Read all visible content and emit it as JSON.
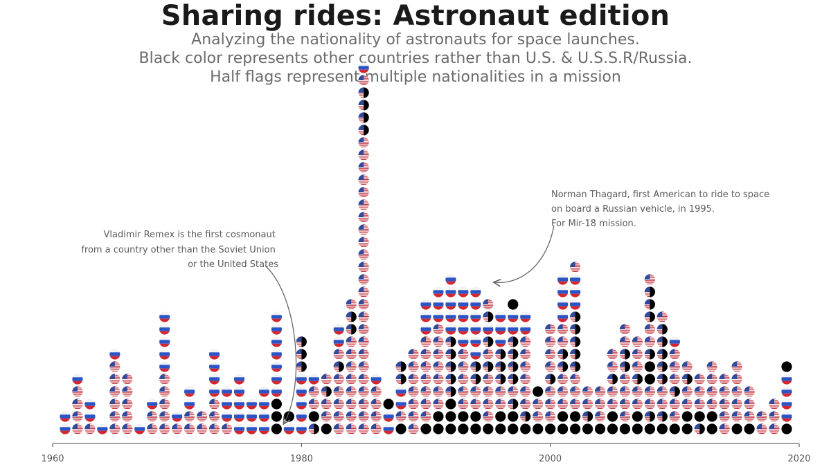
{
  "title": "Sharing rides: Astronaut edition",
  "subtitle_lines": [
    "Analyzing the nationality of astronauts for space launches.",
    "Black color represents other countries rather than U.S. & U.S.S.R/Russia.",
    "Half flags represent multiple nationalities in a mission"
  ],
  "annotations": [
    {
      "lines": [
        "Vladimir Remex is the first cosmonaut",
        "from a country other than the Soviet Union",
        "or the United States"
      ],
      "align": "end"
    },
    {
      "lines": [
        "Norman Thagard, first American to ride to space",
        " on board a Russian vehicle, in 1995.",
        "For Mir-18 mission."
      ],
      "align": "start"
    }
  ],
  "chart_data": {
    "type": "scatter",
    "subtype": "stacked dot plot (one dot per launch/mission, coloured by nationality)",
    "xlim": [
      1960,
      2020
    ],
    "x_ticks": [
      1960,
      1980,
      2000,
      2020
    ],
    "colors": {
      "russia_white": "#f2f2f2",
      "russia_blue": "#2b55c7",
      "russia_red": "#d6262d",
      "usa_red": "#c0313b",
      "usa_white": "#ffffff",
      "usa_blue": "#324a9c",
      "other": "#000000"
    },
    "columns": [
      {
        "year": 1961,
        "stack": [
          "R",
          "R"
        ]
      },
      {
        "year": 1962,
        "stack": [
          "U",
          "U",
          "U",
          "U",
          "R"
        ]
      },
      {
        "year": 1963,
        "stack": [
          "U",
          "R",
          "R"
        ]
      },
      {
        "year": 1964,
        "stack": [
          "R"
        ]
      },
      {
        "year": 1965,
        "stack": [
          "U",
          "U",
          "U",
          "U",
          "U",
          "U",
          "R"
        ]
      },
      {
        "year": 1966,
        "stack": [
          "U",
          "U",
          "U",
          "U",
          "U"
        ]
      },
      {
        "year": 1967,
        "stack": [
          "R"
        ]
      },
      {
        "year": 1968,
        "stack": [
          "U",
          "U",
          "R"
        ]
      },
      {
        "year": 1969,
        "stack": [
          "U",
          "U",
          "U",
          "U",
          "U",
          "R",
          "R",
          "R",
          "R",
          "R"
        ]
      },
      {
        "year": 1970,
        "stack": [
          "U",
          "R"
        ]
      },
      {
        "year": 1971,
        "stack": [
          "U",
          "U",
          "R",
          "R"
        ]
      },
      {
        "year": 1972,
        "stack": [
          "U",
          "U"
        ]
      },
      {
        "year": 1973,
        "stack": [
          "U",
          "U",
          "U",
          "R",
          "R",
          "R",
          "R"
        ]
      },
      {
        "year": 1974,
        "stack": [
          "U",
          "R",
          "R",
          "R"
        ]
      },
      {
        "year": 1975,
        "stack": [
          "R",
          "R",
          "R",
          "R",
          "R"
        ]
      },
      {
        "year": 1976,
        "stack": [
          "R",
          "R",
          "R"
        ]
      },
      {
        "year": 1977,
        "stack": [
          "R",
          "R",
          "R",
          "R"
        ]
      },
      {
        "year": 1978,
        "stack": [
          "O",
          "O",
          "O",
          "R",
          "R",
          "R",
          "R",
          "R",
          "R",
          "R"
        ]
      },
      {
        "year": 1979,
        "stack": [
          "R",
          "O"
        ]
      },
      {
        "year": 1980,
        "stack": [
          "R",
          "R",
          "R",
          "R",
          "R",
          "H",
          "H",
          "H"
        ]
      },
      {
        "year": 1981,
        "stack": [
          "H",
          "O",
          "U",
          "U",
          "R"
        ]
      },
      {
        "year": 1982,
        "stack": [
          "O",
          "U",
          "U",
          "H",
          "U"
        ]
      },
      {
        "year": 1983,
        "stack": [
          "U",
          "U",
          "U",
          "U",
          "U",
          "H",
          "U",
          "R",
          "R"
        ]
      },
      {
        "year": 1984,
        "stack": [
          "U",
          "U",
          "U",
          "U",
          "U",
          "U",
          "U",
          "U",
          "H",
          "H",
          "U"
        ]
      },
      {
        "year": 1985,
        "stack": [
          "U",
          "U",
          "U",
          "U",
          "U",
          "U",
          "U",
          "U",
          "U",
          "U",
          "U",
          "U",
          "U",
          "U",
          "U",
          "U",
          "U",
          "U",
          "U",
          "U",
          "U",
          "U",
          "U",
          "U",
          "H",
          "H",
          "H",
          "H",
          "U",
          "R"
        ]
      },
      {
        "year": 1986,
        "stack": [
          "U",
          "U",
          "U",
          "U",
          "R"
        ]
      },
      {
        "year": 1987,
        "stack": [
          "R",
          "R",
          "O"
        ]
      },
      {
        "year": 1988,
        "stack": [
          "O",
          "U",
          "R",
          "R",
          "H",
          "H"
        ]
      },
      {
        "year": 1989,
        "stack": [
          "U",
          "U",
          "U",
          "U",
          "U",
          "U",
          "U"
        ]
      },
      {
        "year": 1990,
        "stack": [
          "O",
          "U",
          "U",
          "U",
          "U",
          "U",
          "U",
          "U",
          "R",
          "R",
          "R"
        ]
      },
      {
        "year": 1991,
        "stack": [
          "O",
          "O",
          "U",
          "U",
          "U",
          "U",
          "U",
          "U",
          "U",
          "R",
          "R",
          "R"
        ]
      },
      {
        "year": 1992,
        "stack": [
          "O",
          "O",
          "O",
          "H",
          "H",
          "H",
          "H",
          "H",
          "R",
          "R",
          "R",
          "R",
          "R"
        ]
      },
      {
        "year": 1993,
        "stack": [
          "O",
          "O",
          "U",
          "U",
          "U",
          "U",
          "U",
          "R",
          "R",
          "R",
          "R",
          "R"
        ]
      },
      {
        "year": 1994,
        "stack": [
          "O",
          "O",
          "U",
          "U",
          "H",
          "H",
          "R",
          "R",
          "R",
          "R",
          "R",
          "R"
        ]
      },
      {
        "year": 1995,
        "stack": [
          "O",
          "U",
          "U",
          "U",
          "U",
          "H",
          "U",
          "H",
          "R",
          "H",
          "U"
        ]
      },
      {
        "year": 1996,
        "stack": [
          "O",
          "O",
          "U",
          "U",
          "H",
          "H",
          "H",
          "R",
          "R",
          "R"
        ]
      },
      {
        "year": 1997,
        "stack": [
          "O",
          "O",
          "H",
          "U",
          "H",
          "H",
          "H",
          "H",
          "R",
          "R",
          "O"
        ]
      },
      {
        "year": 1998,
        "stack": [
          "O",
          "H",
          "U",
          "U",
          "U",
          "U",
          "U",
          "U",
          "R",
          "R"
        ]
      },
      {
        "year": 1999,
        "stack": [
          "O",
          "U",
          "U",
          "O"
        ]
      },
      {
        "year": 2000,
        "stack": [
          "O",
          "U",
          "U",
          "U",
          "H",
          "U",
          "U",
          "U",
          "U"
        ]
      },
      {
        "year": 2001,
        "stack": [
          "O",
          "O",
          "U",
          "U",
          "U",
          "H",
          "H",
          "U",
          "U",
          "R",
          "R",
          "R",
          "R"
        ]
      },
      {
        "year": 2002,
        "stack": [
          "O",
          "O",
          "U",
          "U",
          "U",
          "H",
          "H",
          "H",
          "H",
          "H",
          "R",
          "R",
          "R",
          "U"
        ]
      },
      {
        "year": 2003,
        "stack": [
          "O",
          "H",
          "U",
          "U"
        ]
      },
      {
        "year": 2004,
        "stack": [
          "O",
          "U",
          "U",
          "U"
        ]
      },
      {
        "year": 2005,
        "stack": [
          "O",
          "O",
          "U",
          "U",
          "H",
          "U",
          "U"
        ]
      },
      {
        "year": 2006,
        "stack": [
          "O",
          "U",
          "U",
          "U",
          "U",
          "H",
          "H",
          "U",
          "U"
        ]
      },
      {
        "year": 2007,
        "stack": [
          "O",
          "O",
          "U",
          "U",
          "H",
          "U",
          "U",
          "U"
        ]
      },
      {
        "year": 2008,
        "stack": [
          "O",
          "H",
          "U",
          "U",
          "O",
          "O",
          "H",
          "U",
          "U",
          "H",
          "H",
          "H",
          "U"
        ]
      },
      {
        "year": 2009,
        "stack": [
          "O",
          "H",
          "U",
          "U",
          "H",
          "H",
          "H",
          "H",
          "H",
          "U"
        ]
      },
      {
        "year": 2010,
        "stack": [
          "O",
          "U",
          "U",
          "H",
          "U",
          "U",
          "U",
          "R"
        ]
      },
      {
        "year": 2011,
        "stack": [
          "O",
          "O",
          "U",
          "U",
          "H",
          "U"
        ]
      },
      {
        "year": 2012,
        "stack": [
          "H",
          "O",
          "U",
          "U",
          "U"
        ]
      },
      {
        "year": 2013,
        "stack": [
          "O",
          "O",
          "U",
          "U",
          "U",
          "U"
        ]
      },
      {
        "year": 2014,
        "stack": [
          "U",
          "U",
          "U",
          "U",
          "U"
        ]
      },
      {
        "year": 2015,
        "stack": [
          "O",
          "U",
          "U",
          "U",
          "U",
          "U"
        ]
      },
      {
        "year": 2016,
        "stack": [
          "O",
          "U",
          "U",
          "U"
        ]
      },
      {
        "year": 2017,
        "stack": [
          "U",
          "U"
        ]
      },
      {
        "year": 2018,
        "stack": [
          "U",
          "U",
          "U"
        ]
      },
      {
        "year": 2019,
        "stack": [
          "O",
          "R",
          "R",
          "R",
          "R",
          "O"
        ]
      }
    ],
    "legend_codes": {
      "U": "U.S.",
      "R": "U.S.S.R/Russia",
      "O": "other countries",
      "H": "half flag (multiple nationalities)"
    }
  }
}
